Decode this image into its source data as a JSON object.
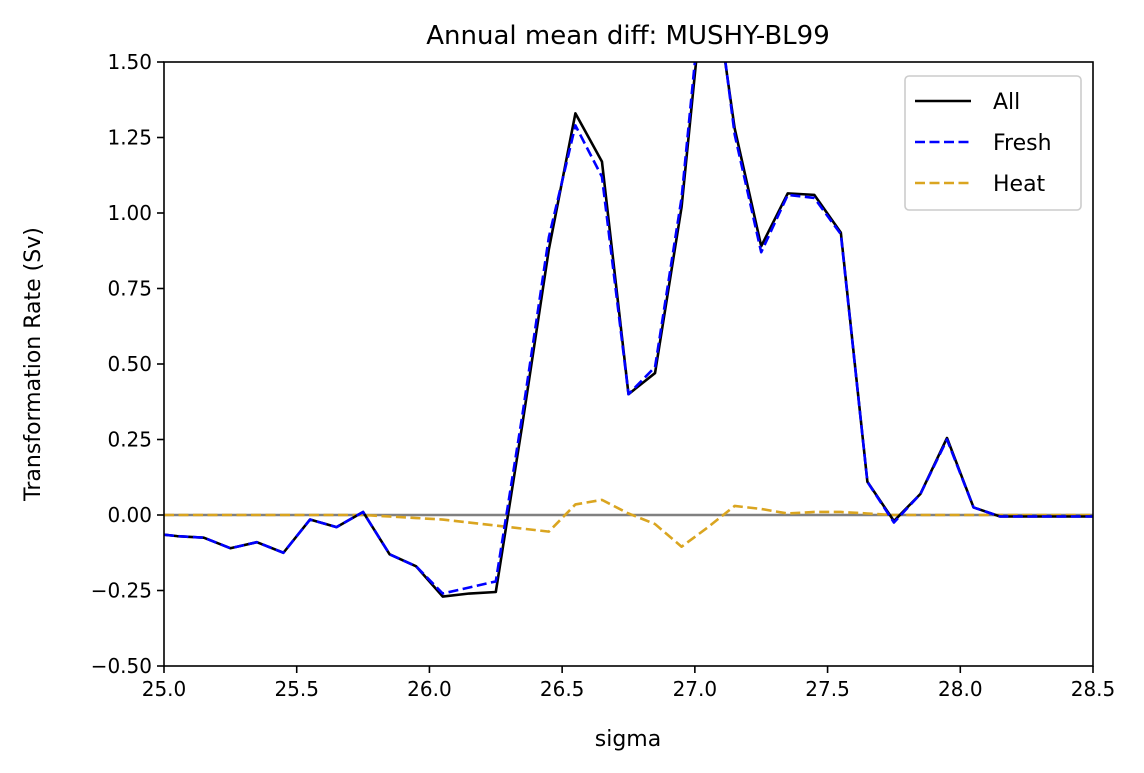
{
  "chart_data": {
    "type": "line",
    "title": "Annual mean diff: MUSHY-BL99",
    "xlabel": "sigma",
    "ylabel": "Transformation Rate (Sv)",
    "xlim": [
      25.0,
      28.5
    ],
    "ylim": [
      -0.5,
      1.5
    ],
    "xticks": [
      25.0,
      25.5,
      26.0,
      26.5,
      27.0,
      27.5,
      28.0,
      28.5
    ],
    "xtick_labels": [
      "25.0",
      "25.5",
      "26.0",
      "26.5",
      "27.0",
      "27.5",
      "28.0",
      "28.5"
    ],
    "yticks": [
      -0.5,
      -0.25,
      0.0,
      0.25,
      0.5,
      0.75,
      1.0,
      1.25,
      1.5
    ],
    "ytick_labels": [
      "−0.50",
      "−0.25",
      "0.00",
      "0.25",
      "0.50",
      "0.75",
      "1.00",
      "1.25",
      "1.50"
    ],
    "grid": false,
    "legend_position": "top-right",
    "zero_line": {
      "y": 0.0,
      "color": "#808080"
    },
    "x": [
      25.0,
      25.05,
      25.15,
      25.25,
      25.35,
      25.45,
      25.55,
      25.65,
      25.75,
      25.85,
      25.95,
      26.05,
      26.15,
      26.25,
      26.35,
      26.45,
      26.55,
      26.65,
      26.75,
      26.85,
      26.95,
      27.05,
      27.15,
      27.25,
      27.35,
      27.45,
      27.55,
      27.65,
      27.75,
      27.85,
      27.95,
      28.05,
      28.15,
      28.25,
      28.35,
      28.5
    ],
    "series": [
      {
        "name": "All",
        "color": "#000000",
        "dash": "solid",
        "values": [
          -0.065,
          -0.07,
          -0.075,
          -0.11,
          -0.09,
          -0.125,
          -0.015,
          -0.04,
          0.01,
          -0.13,
          -0.17,
          -0.27,
          -0.26,
          -0.255,
          0.3,
          0.88,
          1.33,
          1.17,
          0.4,
          0.47,
          1.02,
          1.9,
          1.28,
          0.89,
          1.065,
          1.06,
          0.935,
          0.11,
          -0.02,
          0.07,
          0.255,
          0.025,
          -0.005,
          -0.005,
          -0.005,
          -0.005
        ]
      },
      {
        "name": "Fresh",
        "color": "#0000ff",
        "dash": "dashed",
        "values": [
          -0.065,
          -0.07,
          -0.075,
          -0.11,
          -0.09,
          -0.125,
          -0.015,
          -0.04,
          0.01,
          -0.13,
          -0.17,
          -0.26,
          -0.24,
          -0.22,
          0.33,
          0.92,
          1.29,
          1.12,
          0.4,
          0.49,
          1.05,
          1.95,
          1.26,
          0.87,
          1.06,
          1.05,
          0.93,
          0.11,
          -0.025,
          0.07,
          0.25,
          0.025,
          -0.005,
          -0.005,
          -0.005,
          -0.005
        ]
      },
      {
        "name": "Heat",
        "color": "#daa520",
        "dash": "dashed",
        "values": [
          0.0,
          0.0,
          0.0,
          0.0,
          0.0,
          0.0,
          0.0,
          0.0,
          0.0,
          -0.005,
          -0.01,
          -0.015,
          -0.025,
          -0.035,
          -0.045,
          -0.055,
          0.035,
          0.05,
          0.005,
          -0.03,
          -0.105,
          -0.04,
          0.03,
          0.02,
          0.005,
          0.01,
          0.01,
          0.005,
          0.0,
          0.0,
          0.0,
          0.0,
          0.0,
          0.0,
          0.0,
          0.0
        ]
      }
    ]
  }
}
